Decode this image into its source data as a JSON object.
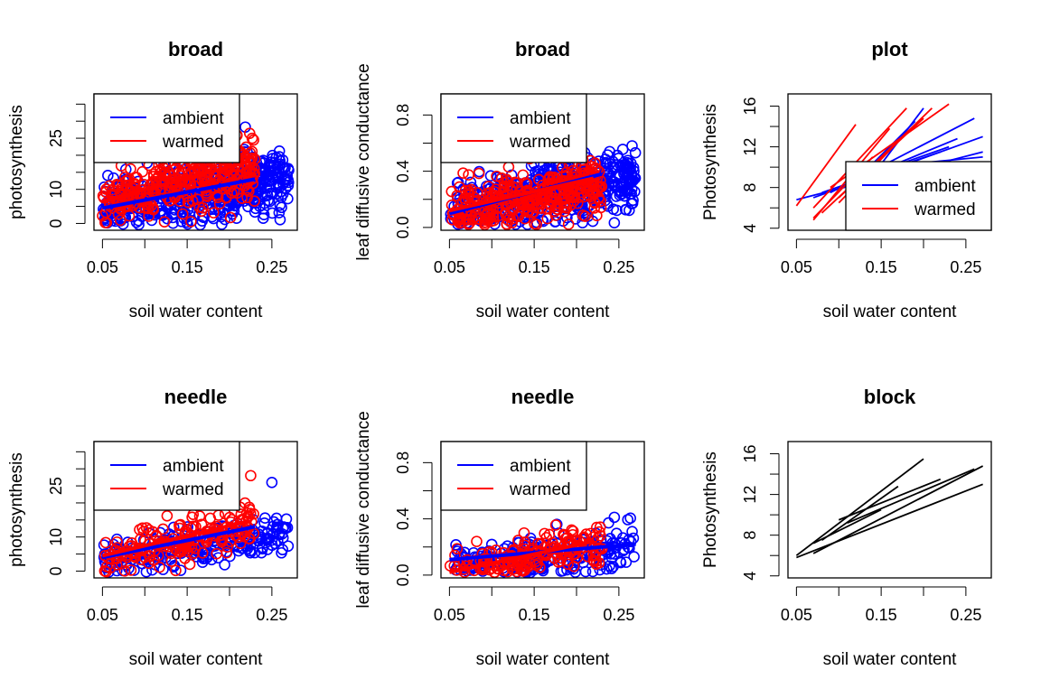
{
  "colors": {
    "ambient": "#0000ff",
    "warmed": "#ff0000",
    "plain": "#000000"
  },
  "chart_data": [
    {
      "type": "scatter",
      "title": "broad",
      "xlabel": "soil water content",
      "ylabel": "photosynthesis",
      "xlim": [
        0.04,
        0.28
      ],
      "ylim": [
        -2,
        38
      ],
      "xticks": [
        0.05,
        0.1,
        0.15,
        0.2,
        0.25
      ],
      "xticklabels": [
        "0.05",
        "",
        "0.15",
        "",
        "0.25"
      ],
      "yticks": [
        0,
        5,
        10,
        15,
        20,
        25,
        30,
        35
      ],
      "yticklabels": [
        "0",
        "",
        "10",
        "",
        "",
        "25",
        "",
        ""
      ],
      "legend": {
        "position": "top-left",
        "items": [
          "ambient",
          "warmed"
        ]
      },
      "series": [
        {
          "name": "ambient",
          "color": "ambient",
          "x_range": [
            0.05,
            0.27
          ],
          "y_mean_at_ends": [
            5,
            13
          ],
          "y_spread": 9,
          "count": 520,
          "fit": {
            "x": [
              0.05,
              0.23
            ],
            "y": [
              4.5,
              13
            ]
          }
        },
        {
          "name": "warmed",
          "color": "warmed",
          "x_range": [
            0.05,
            0.23
          ],
          "y_mean_at_ends": [
            7,
            16
          ],
          "y_spread": 9,
          "count": 330,
          "fit": {
            "x": [
              0.05,
              0.22
            ],
            "y": [
              6.5,
              18
            ]
          }
        }
      ]
    },
    {
      "type": "scatter",
      "title": "broad",
      "xlabel": "soil water content",
      "ylabel": "leaf diffusive conductance",
      "xlim": [
        0.04,
        0.28
      ],
      "ylim": [
        -0.02,
        0.95
      ],
      "xticks": [
        0.05,
        0.1,
        0.15,
        0.2,
        0.25
      ],
      "xticklabels": [
        "0.05",
        "",
        "0.15",
        "",
        "0.25"
      ],
      "yticks": [
        0,
        0.2,
        0.4,
        0.6,
        0.8
      ],
      "yticklabels": [
        "0.0",
        "",
        "0.4",
        "",
        "0.8"
      ],
      "legend": {
        "position": "top-left",
        "items": [
          "ambient",
          "warmed"
        ]
      },
      "series": [
        {
          "name": "ambient",
          "color": "ambient",
          "x_range": [
            0.05,
            0.27
          ],
          "y_mean_at_ends": [
            0.1,
            0.35
          ],
          "y_spread": 0.22,
          "count": 520,
          "fit": {
            "x": [
              0.05,
              0.23
            ],
            "y": [
              0.1,
              0.38
            ]
          }
        },
        {
          "name": "warmed",
          "color": "warmed",
          "x_range": [
            0.05,
            0.23
          ],
          "y_mean_at_ends": [
            0.12,
            0.3
          ],
          "y_spread": 0.2,
          "count": 330,
          "fit": {
            "x": [
              0.05,
              0.22
            ],
            "y": [
              0.12,
              0.35
            ]
          }
        }
      ]
    },
    {
      "type": "line",
      "title": "plot",
      "xlabel": "soil water content",
      "ylabel": "Photosynthesis",
      "xlim": [
        0.04,
        0.28
      ],
      "ylim": [
        3.8,
        17.2
      ],
      "xticks": [
        0.05,
        0.1,
        0.15,
        0.2,
        0.25
      ],
      "xticklabels": [
        "0.05",
        "",
        "0.15",
        "",
        "0.25"
      ],
      "yticks": [
        4,
        6,
        8,
        10,
        12,
        14,
        16
      ],
      "yticklabels": [
        "4",
        "",
        "8",
        "",
        "12",
        "",
        "16"
      ],
      "legend": {
        "position": "bottom-right",
        "items": [
          "ambient",
          "warmed"
        ]
      },
      "segments": [
        {
          "color": "ambient",
          "x": [
            0.05,
            0.27
          ],
          "y": [
            6.8,
            11.5
          ]
        },
        {
          "color": "ambient",
          "x": [
            0.07,
            0.27
          ],
          "y": [
            7.0,
            13.0
          ]
        },
        {
          "color": "ambient",
          "x": [
            0.09,
            0.26
          ],
          "y": [
            7.5,
            14.8
          ]
        },
        {
          "color": "ambient",
          "x": [
            0.1,
            0.24
          ],
          "y": [
            8.0,
            12.8
          ]
        },
        {
          "color": "ambient",
          "x": [
            0.11,
            0.23
          ],
          "y": [
            8.5,
            12.0
          ]
        },
        {
          "color": "ambient",
          "x": [
            0.12,
            0.2
          ],
          "y": [
            7.0,
            15.8
          ]
        },
        {
          "color": "ambient",
          "x": [
            0.13,
            0.19
          ],
          "y": [
            9.5,
            14.5
          ]
        },
        {
          "color": "ambient",
          "x": [
            0.08,
            0.22
          ],
          "y": [
            7.5,
            11.5
          ]
        },
        {
          "color": "ambient",
          "x": [
            0.12,
            0.27
          ],
          "y": [
            9.8,
            11.0
          ]
        },
        {
          "color": "warmed",
          "x": [
            0.05,
            0.12
          ],
          "y": [
            6.2,
            14.2
          ]
        },
        {
          "color": "warmed",
          "x": [
            0.07,
            0.18
          ],
          "y": [
            6.0,
            15.8
          ]
        },
        {
          "color": "warmed",
          "x": [
            0.07,
            0.16
          ],
          "y": [
            4.8,
            13.8
          ]
        },
        {
          "color": "warmed",
          "x": [
            0.08,
            0.2
          ],
          "y": [
            5.5,
            14.8
          ]
        },
        {
          "color": "warmed",
          "x": [
            0.09,
            0.23
          ],
          "y": [
            8.0,
            16.2
          ]
        },
        {
          "color": "warmed",
          "x": [
            0.1,
            0.21
          ],
          "y": [
            7.0,
            15.8
          ]
        },
        {
          "color": "warmed",
          "x": [
            0.1,
            0.17
          ],
          "y": [
            6.5,
            12.5
          ]
        },
        {
          "color": "warmed",
          "x": [
            0.07,
            0.14
          ],
          "y": [
            5.0,
            11.0
          ]
        }
      ]
    },
    {
      "type": "scatter",
      "title": "needle",
      "xlabel": "soil water content",
      "ylabel": "photosynthesis",
      "xlim": [
        0.04,
        0.28
      ],
      "ylim": [
        -2,
        38
      ],
      "xticks": [
        0.05,
        0.1,
        0.15,
        0.2,
        0.25
      ],
      "xticklabels": [
        "0.05",
        "",
        "0.15",
        "",
        "0.25"
      ],
      "yticks": [
        0,
        5,
        10,
        15,
        20,
        25,
        30,
        35
      ],
      "yticklabels": [
        "0",
        "",
        "10",
        "",
        "",
        "25",
        "",
        ""
      ],
      "legend": {
        "position": "top-left",
        "items": [
          "ambient",
          "warmed"
        ]
      },
      "series": [
        {
          "name": "ambient",
          "color": "ambient",
          "x_range": [
            0.05,
            0.27
          ],
          "y_mean_at_ends": [
            3,
            11
          ],
          "y_spread": 6,
          "count": 230,
          "fit": {
            "x": [
              0.05,
              0.23
            ],
            "y": [
              4,
              13
            ]
          },
          "extra_points": [
            [
              0.25,
              26
            ]
          ]
        },
        {
          "name": "warmed",
          "color": "warmed",
          "x_range": [
            0.05,
            0.23
          ],
          "y_mean_at_ends": [
            4,
            13
          ],
          "y_spread": 6,
          "count": 180,
          "fit": {
            "x": [
              0.05,
              0.22
            ],
            "y": [
              4.5,
              14.5
            ]
          },
          "extra_points": [
            [
              0.225,
              28
            ]
          ]
        }
      ]
    },
    {
      "type": "scatter",
      "title": "needle",
      "xlabel": "soil water content",
      "ylabel": "leaf diffusive conductance",
      "xlim": [
        0.04,
        0.28
      ],
      "ylim": [
        -0.02,
        0.95
      ],
      "xticks": [
        0.05,
        0.1,
        0.15,
        0.2,
        0.25
      ],
      "xticklabels": [
        "0.05",
        "",
        "0.15",
        "",
        "0.25"
      ],
      "yticks": [
        0,
        0.2,
        0.4,
        0.6,
        0.8
      ],
      "yticklabels": [
        "0.0",
        "",
        "0.4",
        "",
        "0.8"
      ],
      "legend": {
        "position": "top-left",
        "items": [
          "ambient",
          "warmed"
        ]
      },
      "series": [
        {
          "name": "ambient",
          "color": "ambient",
          "x_range": [
            0.05,
            0.27
          ],
          "y_mean_at_ends": [
            0.06,
            0.2
          ],
          "y_spread": 0.16,
          "count": 230,
          "fit": {
            "x": [
              0.05,
              0.27
            ],
            "y": [
              0.11,
              0.22
            ]
          }
        },
        {
          "name": "warmed",
          "color": "warmed",
          "x_range": [
            0.05,
            0.23
          ],
          "y_mean_at_ends": [
            0.04,
            0.22
          ],
          "y_spread": 0.16,
          "count": 180,
          "fit": {
            "x": [
              0.05,
              0.22
            ],
            "y": [
              0.02,
              0.24
            ]
          }
        }
      ]
    },
    {
      "type": "line",
      "title": "block",
      "xlabel": "soil water content",
      "ylabel": "Photosynthesis",
      "xlim": [
        0.04,
        0.28
      ],
      "ylim": [
        3.8,
        17.2
      ],
      "xticks": [
        0.05,
        0.1,
        0.15,
        0.2,
        0.25
      ],
      "xticklabels": [
        "0.05",
        "",
        "0.15",
        "",
        "0.25"
      ],
      "yticks": [
        4,
        6,
        8,
        10,
        12,
        14,
        16
      ],
      "yticklabels": [
        "4",
        "",
        "8",
        "",
        "12",
        "",
        "16"
      ],
      "segments": [
        {
          "color": "plain",
          "x": [
            0.05,
            0.2
          ],
          "y": [
            6.0,
            15.5
          ]
        },
        {
          "color": "plain",
          "x": [
            0.05,
            0.27
          ],
          "y": [
            5.8,
            13.0
          ]
        },
        {
          "color": "plain",
          "x": [
            0.07,
            0.27
          ],
          "y": [
            6.2,
            14.8
          ]
        },
        {
          "color": "plain",
          "x": [
            0.08,
            0.17
          ],
          "y": [
            7.5,
            12.8
          ]
        },
        {
          "color": "plain",
          "x": [
            0.1,
            0.22
          ],
          "y": [
            9.5,
            13.5
          ]
        },
        {
          "color": "plain",
          "x": [
            0.11,
            0.26
          ],
          "y": [
            9.2,
            14.5
          ]
        },
        {
          "color": "plain",
          "x": [
            0.07,
            0.15
          ],
          "y": [
            7.2,
            10.5
          ]
        }
      ]
    }
  ]
}
